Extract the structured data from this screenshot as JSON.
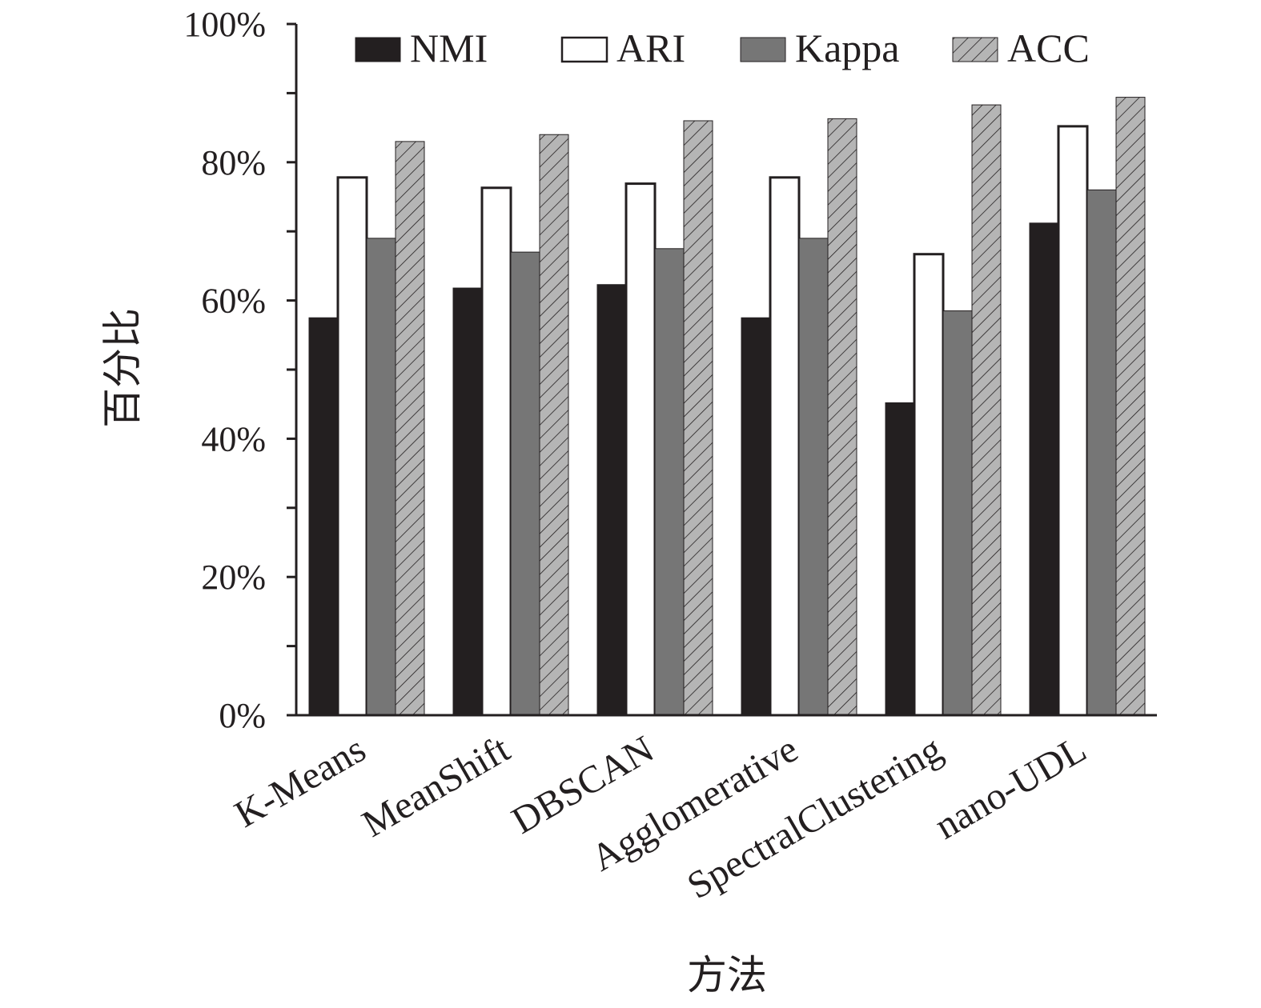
{
  "chart_data": {
    "type": "bar",
    "title": "",
    "xlabel": "方法",
    "ylabel": "百分比",
    "ylim": [
      0,
      100
    ],
    "yticks": [
      "0%",
      "20%",
      "40%",
      "60%",
      "80%",
      "100%"
    ],
    "grid": false,
    "legend_position": "top",
    "categories": [
      "K-Means",
      "MeanShift",
      "DBSCAN",
      "Agglomerative",
      "SpectralClustering",
      "nano-UDL"
    ],
    "series": [
      {
        "name": "NMI",
        "values": [
          57.5,
          61.8,
          62.3,
          57.5,
          45.2,
          71.2
        ],
        "color": "#231f20",
        "pattern": "solid"
      },
      {
        "name": "ARI",
        "values": [
          77.8,
          76.3,
          76.9,
          77.8,
          66.7,
          85.2
        ],
        "color": "#ffffff",
        "pattern": "solid"
      },
      {
        "name": "Kappa",
        "values": [
          69.0,
          67.0,
          67.5,
          69.0,
          58.5,
          76.0
        ],
        "color": "#767676",
        "pattern": "solid"
      },
      {
        "name": "ACC",
        "values": [
          83.0,
          84.0,
          86.0,
          86.3,
          88.3,
          89.4
        ],
        "color": "#b5b5b5",
        "pattern": "hatch"
      }
    ]
  }
}
